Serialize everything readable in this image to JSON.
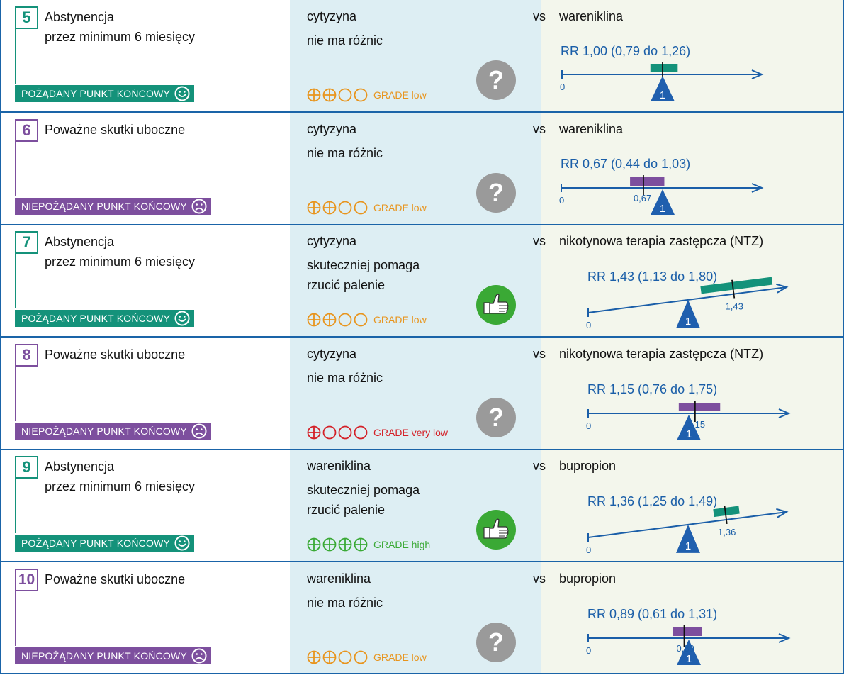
{
  "rows": [
    {
      "number": "5",
      "kind": "desired",
      "title_lines": [
        "Abstynencja",
        "przez minimum 6 miesięcy"
      ],
      "badge": "POŻĄDANY PUNKT KOŃCOWY",
      "drug": "cytyzyna",
      "result_lines": [
        "nie ma różnic"
      ],
      "grade_filled": 2,
      "grade_text": "GRADE low",
      "grade_color": "#e8941c",
      "verdict_icon": "question-icon",
      "vs": "vs",
      "comparator": "wareniklina",
      "rr_text": "RR 1,00 (0,79 do 1,26)",
      "rr": 1.0,
      "ci_low": 0.79,
      "ci_high": 1.26,
      "point_label": "",
      "zero_label": "0",
      "one_label": "1",
      "tilt": "flat"
    },
    {
      "number": "6",
      "kind": "undesired",
      "title_lines": [
        "Poważne skutki uboczne"
      ],
      "badge": "NIEPOŻĄDANY PUNKT KOŃCOWY",
      "drug": "cytyzyna",
      "result_lines": [
        "nie ma różnic"
      ],
      "grade_filled": 2,
      "grade_text": "GRADE low",
      "grade_color": "#e8941c",
      "verdict_icon": "question-icon",
      "vs": "vs",
      "comparator": "wareniklina",
      "rr_text": "RR 0,67 (0,44 do 1,03)",
      "rr": 0.67,
      "ci_low": 0.44,
      "ci_high": 1.03,
      "point_label": "0,67",
      "zero_label": "0",
      "one_label": "1",
      "tilt": "flat"
    },
    {
      "number": "7",
      "kind": "desired",
      "title_lines": [
        "Abstynencja",
        "przez minimum 6 miesięcy"
      ],
      "badge": "POŻĄDANY PUNKT KOŃCOWY",
      "drug": "cytyzyna",
      "result_lines": [
        "skuteczniej pomaga",
        "rzucić palenie"
      ],
      "grade_filled": 2,
      "grade_text": "GRADE low",
      "grade_color": "#e8941c",
      "verdict_icon": "thumbs-up-icon",
      "vs": "vs",
      "comparator": "nikotynowa terapia zastępcza (NTZ)",
      "rr_text": "RR 1,43 (1,13 do 1,80)",
      "rr": 1.43,
      "ci_low": 1.13,
      "ci_high": 1.8,
      "point_label": "1,43",
      "zero_label": "0",
      "one_label": "1",
      "tilt": "up"
    },
    {
      "number": "8",
      "kind": "undesired",
      "title_lines": [
        "Poważne skutki uboczne"
      ],
      "badge": "NIEPOŻĄDANY PUNKT KOŃCOWY",
      "drug": "cytyzyna",
      "result_lines": [
        "nie ma różnic"
      ],
      "grade_filled": 1,
      "grade_text": "GRADE very low",
      "grade_color": "#d42027",
      "verdict_icon": "question-icon",
      "vs": "vs",
      "comparator": "nikotynowa terapia zastępcza (NTZ)",
      "rr_text": "RR 1,15 (0,76 do 1,75)",
      "rr": 1.15,
      "ci_low": 0.76,
      "ci_high": 1.75,
      "point_label": "1,15",
      "zero_label": "0",
      "one_label": "1",
      "tilt": "flat"
    },
    {
      "number": "9",
      "kind": "desired",
      "title_lines": [
        "Abstynencja",
        "przez minimum 6 miesięcy"
      ],
      "badge": "POŻĄDANY PUNKT KOŃCOWY",
      "drug": "wareniklina",
      "result_lines": [
        "skuteczniej pomaga",
        "rzucić palenie"
      ],
      "grade_filled": 4,
      "grade_text": "GRADE high",
      "grade_color": "#3aa935",
      "verdict_icon": "thumbs-up-icon",
      "vs": "vs",
      "comparator": "bupropion",
      "rr_text": "RR 1,36 (1,25 do 1,49)",
      "rr": 1.36,
      "ci_low": 1.25,
      "ci_high": 1.49,
      "point_label": "1,36",
      "zero_label": "0",
      "one_label": "1",
      "tilt": "up"
    },
    {
      "number": "10",
      "kind": "undesired",
      "title_lines": [
        "Poważne skutki uboczne"
      ],
      "badge": "NIEPOŻĄDANY PUNKT KOŃCOWY",
      "drug": "wareniklina",
      "result_lines": [
        "nie ma różnic"
      ],
      "grade_filled": 2,
      "grade_text": "GRADE low",
      "grade_color": "#e8941c",
      "verdict_icon": "question-icon",
      "vs": "vs",
      "comparator": "bupropion",
      "rr_text": "RR 0,89 (0,61 do 1,31)",
      "rr": 0.89,
      "ci_low": 0.61,
      "ci_high": 1.31,
      "point_label": "0,89",
      "zero_label": "0",
      "one_label": "1",
      "tilt": "flat"
    }
  ],
  "colors": {
    "desired": "#14927a",
    "undesired": "#7d4f9e",
    "axis": "#1a5ea8",
    "question_bg": "#9a9a9a",
    "thumb_bg": "#3aa935"
  }
}
